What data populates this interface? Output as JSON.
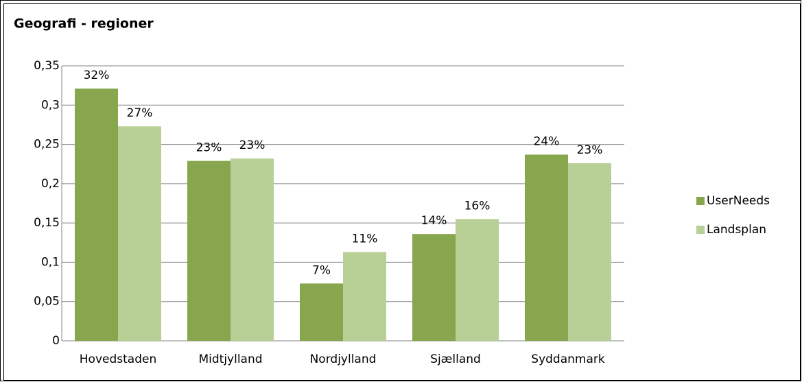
{
  "chart_data": {
    "type": "bar",
    "title": "Geografi - regioner",
    "categories": [
      "Hovedstaden",
      "Midtjylland",
      "Nordjylland",
      "Sjælland",
      "Syddanmark"
    ],
    "series": [
      {
        "name": "UserNeeds",
        "color": "#88a64e",
        "values": [
          0.321,
          0.229,
          0.073,
          0.136,
          0.237
        ],
        "value_labels": [
          "32%",
          "23%",
          "7%",
          "14%",
          "24%"
        ]
      },
      {
        "name": "Landsplan",
        "color": "#b8cf96",
        "values": [
          0.273,
          0.232,
          0.113,
          0.155,
          0.226
        ],
        "value_labels": [
          "27%",
          "23%",
          "11%",
          "16%",
          "23%"
        ]
      }
    ],
    "ylim": [
      0,
      0.35
    ],
    "yticks": [
      0,
      {
        "value": 0.05,
        "label": "0,05"
      },
      {
        "value": 0.1,
        "label": "0,1"
      },
      {
        "value": 0.15,
        "label": "0,15"
      },
      {
        "value": 0.2,
        "label": "0,2"
      },
      {
        "value": 0.25,
        "label": "0,25"
      },
      {
        "value": 0.3,
        "label": "0,3"
      },
      {
        "value": 0.35,
        "label": "0,35"
      }
    ],
    "grid": true,
    "legend": "right"
  }
}
